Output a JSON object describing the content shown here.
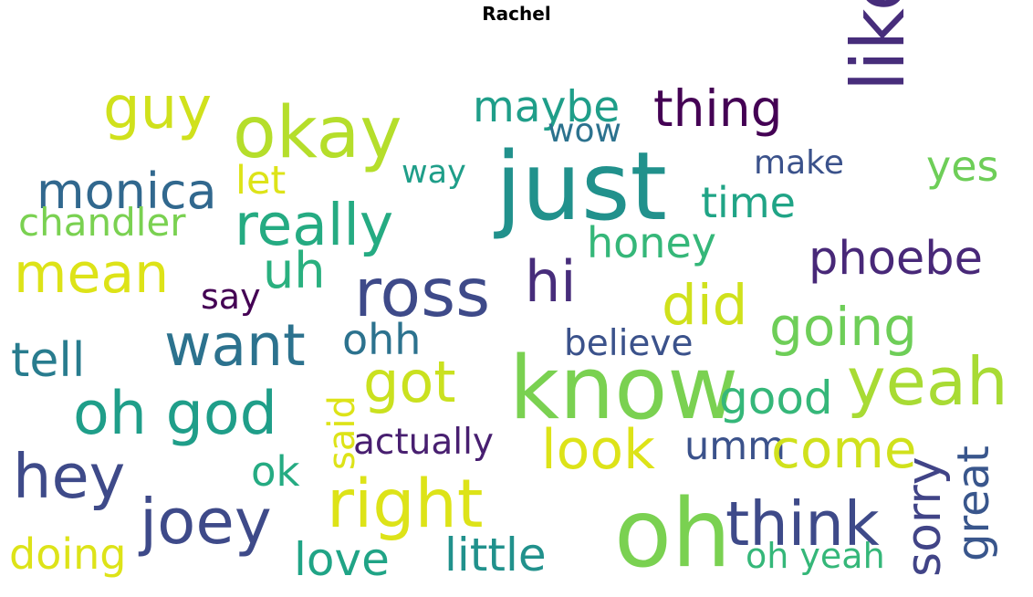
{
  "title": "Rachel",
  "words": [
    {
      "text": "okay",
      "color": "#b5de2b"
    },
    {
      "text": "guy",
      "color": "#d0e11c"
    },
    {
      "text": "maybe",
      "color": "#1f9e89"
    },
    {
      "text": "wow",
      "color": "#2c728e"
    },
    {
      "text": "thing",
      "color": "#440154"
    },
    {
      "text": "like",
      "color": "#472d7b"
    },
    {
      "text": "just",
      "color": "#21918c"
    },
    {
      "text": "monica",
      "color": "#31688e"
    },
    {
      "text": "let",
      "color": "#dde318"
    },
    {
      "text": "way",
      "color": "#1f9e89"
    },
    {
      "text": "make",
      "color": "#3b528b"
    },
    {
      "text": "yes",
      "color": "#6ece58"
    },
    {
      "text": "time",
      "color": "#20a486"
    },
    {
      "text": "chandler",
      "color": "#7ad151"
    },
    {
      "text": "really",
      "color": "#25ab82"
    },
    {
      "text": "honey",
      "color": "#35b779"
    },
    {
      "text": "phoebe",
      "color": "#482878"
    },
    {
      "text": "mean",
      "color": "#dde318"
    },
    {
      "text": "uh",
      "color": "#2ab07f"
    },
    {
      "text": "ross",
      "color": "#3e4a89"
    },
    {
      "text": "hi",
      "color": "#472d7b"
    },
    {
      "text": "say",
      "color": "#440154"
    },
    {
      "text": "did",
      "color": "#d0e11c"
    },
    {
      "text": "going",
      "color": "#6ece58"
    },
    {
      "text": "want",
      "color": "#2c728e"
    },
    {
      "text": "ohh",
      "color": "#2c728e"
    },
    {
      "text": "believe",
      "color": "#3b528b"
    },
    {
      "text": "tell",
      "color": "#287c8e"
    },
    {
      "text": "got",
      "color": "#cae11f"
    },
    {
      "text": "know",
      "color": "#7ad151"
    },
    {
      "text": "yeah",
      "color": "#a8db34"
    },
    {
      "text": "said",
      "color": "#dde318"
    },
    {
      "text": "good",
      "color": "#35b779"
    },
    {
      "text": "oh god",
      "color": "#1f9e89"
    },
    {
      "text": "hey",
      "color": "#3e4a89"
    },
    {
      "text": "actually",
      "color": "#481f70"
    },
    {
      "text": "look",
      "color": "#dde318"
    },
    {
      "text": "umm",
      "color": "#3b528b"
    },
    {
      "text": "come",
      "color": "#d0e11c"
    },
    {
      "text": "sorry",
      "color": "#414487"
    },
    {
      "text": "great",
      "color": "#39568c"
    },
    {
      "text": "ok",
      "color": "#25ab82"
    },
    {
      "text": "right",
      "color": "#dde318"
    },
    {
      "text": "joey",
      "color": "#3e4a89"
    },
    {
      "text": "think",
      "color": "#3e4a89"
    },
    {
      "text": "oh",
      "color": "#7ad151"
    },
    {
      "text": "doing",
      "color": "#dde318"
    },
    {
      "text": "love",
      "color": "#20a486"
    },
    {
      "text": "little",
      "color": "#21918c"
    },
    {
      "text": "oh yeah",
      "color": "#35b779"
    }
  ]
}
